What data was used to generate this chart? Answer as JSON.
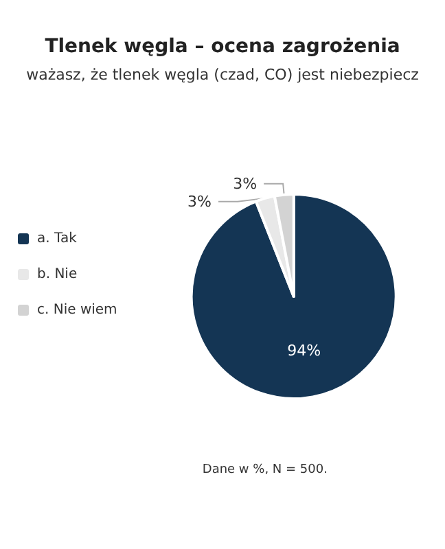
{
  "chart_data": {
    "type": "pie",
    "title": "Tlenek węgla – ocena zagrożenia",
    "subtitle": "ważasz, że tlenek węgla (czad, CO) jest niebezpiecz",
    "categories": [
      "a. Tak",
      "b. Nie",
      "c. Nie wiem"
    ],
    "values": [
      94,
      3,
      3
    ],
    "colors": [
      "#143554",
      "#e8e8e8",
      "#d3d3d3"
    ],
    "value_labels": [
      "94%",
      "3%",
      "3%"
    ],
    "legend": "left",
    "annotations": [
      "Dane w %, N = 500."
    ]
  }
}
